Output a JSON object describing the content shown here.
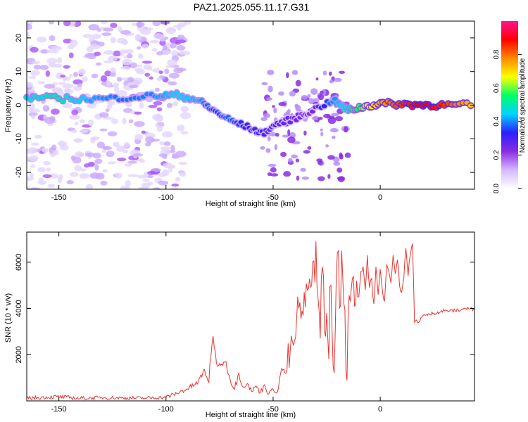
{
  "figure_title": "PAZ1.2025.055.11.17.G31",
  "colors": {
    "axis": "#000000",
    "snr_line": "#e8342f",
    "spectrogram_low": "#e6d2ff",
    "spectrogram_mid": "#8a2be2"
  },
  "chart_data": [
    {
      "type": "heatmap",
      "title": "",
      "xlabel": "Height of straight line (km)",
      "ylabel": "Frequency (Hz)",
      "xlim": [
        -165,
        44
      ],
      "ylim": [
        -25,
        25
      ],
      "xticks": [
        -150,
        -100,
        -50,
        0
      ],
      "yticks": [
        -20,
        -10,
        0,
        10,
        20
      ],
      "colorbar": {
        "label": "Normalized spectral amplitude",
        "range": [
          0,
          1
        ],
        "ticks": [
          "0.0",
          "0.2",
          "0.4",
          "0.6",
          "0.8"
        ],
        "colormap": [
          "#ffffff",
          "#d4b8ff",
          "#8a2be2",
          "#2b1fff",
          "#00d4ff",
          "#00ff66",
          "#ffff00",
          "#ff8800",
          "#ff0000",
          "#ff1493"
        ]
      },
      "main_tone": [
        {
          "x": -165,
          "y": 2.3,
          "v": 0.45
        },
        {
          "x": -150,
          "y": 2.0,
          "v": 0.5
        },
        {
          "x": -135,
          "y": 1.8,
          "v": 0.42
        },
        {
          "x": -120,
          "y": 2.2,
          "v": 0.38
        },
        {
          "x": -105,
          "y": 2.8,
          "v": 0.4
        },
        {
          "x": -95,
          "y": 3.0,
          "v": 0.45
        },
        {
          "x": -85,
          "y": 1.5,
          "v": 0.42
        },
        {
          "x": -78,
          "y": -1.5,
          "v": 0.35
        },
        {
          "x": -70,
          "y": -4.5,
          "v": 0.38
        },
        {
          "x": -62,
          "y": -6.5,
          "v": 0.32
        },
        {
          "x": -55,
          "y": -8.5,
          "v": 0.3
        },
        {
          "x": -48,
          "y": -5.5,
          "v": 0.28
        },
        {
          "x": -40,
          "y": -4.0,
          "v": 0.26
        },
        {
          "x": -33,
          "y": -2.0,
          "v": 0.22
        },
        {
          "x": -22,
          "y": 1.5,
          "v": 0.4
        },
        {
          "x": -15,
          "y": -1.5,
          "v": 0.48
        },
        {
          "x": -8,
          "y": -0.5,
          "v": 0.6
        },
        {
          "x": 0,
          "y": 0.5,
          "v": 0.75
        },
        {
          "x": 10,
          "y": 0.3,
          "v": 0.85
        },
        {
          "x": 20,
          "y": 0.1,
          "v": 0.9
        },
        {
          "x": 30,
          "y": 0.0,
          "v": 0.85
        },
        {
          "x": 44,
          "y": 0.0,
          "v": 0.7
        }
      ]
    },
    {
      "type": "line",
      "title": "",
      "xlabel": "Height of straight line (km)",
      "ylabel": "SNR (10 * v/v)",
      "xlim": [
        -165,
        44
      ],
      "ylim": [
        0,
        7300
      ],
      "xticks": [
        -150,
        -100,
        -50,
        0
      ],
      "yticks": [
        2000,
        4000,
        6000
      ],
      "series": [
        {
          "x": [
            -165,
            -150,
            -140,
            -130,
            -120,
            -110,
            -100,
            -95,
            -90,
            -85,
            -82,
            -80,
            -78,
            -76,
            -74,
            -72,
            -70,
            -68,
            -66,
            -64,
            -62,
            -60,
            -58,
            -56,
            -54,
            -52,
            -50,
            -48,
            -46,
            -44,
            -42,
            -40,
            -38,
            -36,
            -34,
            -32,
            -30,
            -29,
            -28,
            -27,
            -26,
            -25,
            -24,
            -23,
            -22,
            -21,
            -20,
            -19,
            -18,
            -17,
            -16,
            -15,
            -14,
            -13,
            -12,
            -11,
            -10,
            -9,
            -8,
            -7,
            -6,
            -5,
            -4,
            -3,
            -2,
            -1,
            0,
            1,
            2,
            3,
            4,
            5,
            6,
            7,
            8,
            9,
            10,
            11,
            12,
            13,
            14,
            15,
            16,
            17,
            18,
            19,
            20,
            22,
            25,
            30,
            35,
            40,
            44
          ],
          "y": [
            120,
            180,
            110,
            140,
            130,
            120,
            160,
            320,
            520,
            800,
            1350,
            800,
            2800,
            1500,
            1600,
            1700,
            900,
            500,
            1200,
            600,
            750,
            400,
            650,
            350,
            700,
            300,
            500,
            380,
            1400,
            1200,
            2200,
            2600,
            4000,
            3700,
            4800,
            5000,
            6900,
            4400,
            2700,
            5800,
            3000,
            3800,
            1800,
            5000,
            1500,
            3000,
            6400,
            4000,
            6500,
            4200,
            1300,
            3700,
            4300,
            5300,
            4100,
            5200,
            4500,
            5600,
            5800,
            4800,
            6300,
            4900,
            5300,
            4200,
            5800,
            4600,
            5700,
            4800,
            4300,
            5900,
            5600,
            5100,
            6300,
            5500,
            6100,
            5000,
            4700,
            5300,
            6600,
            5400,
            6300,
            6800,
            3400,
            3500,
            3400,
            3600,
            3700,
            3700,
            3800,
            3900,
            3900,
            4000,
            3950
          ]
        }
      ]
    }
  ]
}
